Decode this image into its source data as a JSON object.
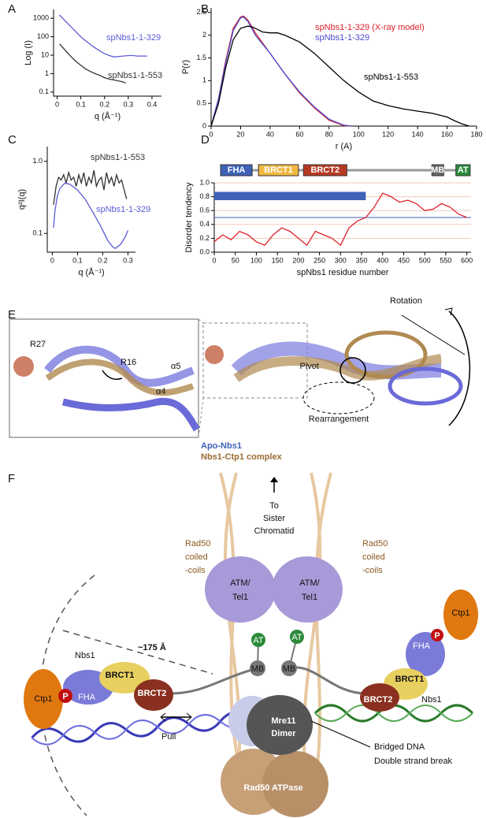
{
  "panel_labels": [
    "A",
    "B",
    "C",
    "D",
    "E",
    "F"
  ],
  "chart_data": [
    {
      "type": "line",
      "xlabel": "q (Å⁻¹)",
      "ylabel": "Log (I)",
      "log_y": true,
      "xlim": [
        -0.015,
        0.44
      ],
      "ylim": [
        0.06,
        3000
      ],
      "xticks": [
        0,
        0.1,
        0.2,
        0.3,
        0.4
      ],
      "yticks": [
        0.1,
        1,
        10,
        100,
        1000
      ],
      "series": [
        {
          "name": "spNbs1-1-329",
          "color": "#5b5bd6",
          "x": [
            0.01,
            0.02,
            0.04,
            0.06,
            0.08,
            0.1,
            0.12,
            0.14,
            0.16,
            0.18,
            0.2,
            0.22,
            0.24,
            0.26,
            0.28,
            0.3,
            0.32,
            0.34,
            0.36,
            0.38
          ],
          "values": [
            1500,
            1100,
            600,
            330,
            180,
            100,
            60,
            38,
            25,
            17,
            12,
            9.5,
            8,
            8.5,
            9,
            9.5,
            9.5,
            9,
            9,
            9
          ]
        },
        {
          "name": "spNbs1-1-553",
          "color": "#333333",
          "x": [
            0.01,
            0.02,
            0.04,
            0.06,
            0.08,
            0.1,
            0.12,
            0.14,
            0.16,
            0.18,
            0.2,
            0.22,
            0.24,
            0.26,
            0.28,
            0.29
          ],
          "values": [
            40,
            30,
            15,
            8,
            4.5,
            2.8,
            1.8,
            1.3,
            1,
            0.8,
            0.6,
            0.5,
            0.45,
            0.4,
            0.35,
            0.3
          ]
        }
      ]
    },
    {
      "type": "line",
      "xlabel": "r (A)",
      "ylabel": "P(r)",
      "log_y": false,
      "xlim": [
        0,
        180
      ],
      "ylim": [
        0,
        2.6
      ],
      "xticks": [
        0,
        20,
        40,
        60,
        80,
        100,
        120,
        140,
        160,
        180
      ],
      "yticks": [
        0,
        0.5,
        1,
        1.5,
        2,
        2.5
      ],
      "series": [
        {
          "name": "spNbs1-1-329 (X-ray model)",
          "color": "#e0202a",
          "x": [
            0,
            5,
            10,
            15,
            20,
            22,
            25,
            30,
            40,
            50,
            60,
            70,
            80,
            90,
            95
          ],
          "values": [
            0,
            0.6,
            1.45,
            2.15,
            2.4,
            2.42,
            2.33,
            2.05,
            1.6,
            1.15,
            0.73,
            0.4,
            0.13,
            0.01,
            0
          ]
        },
        {
          "name": "spNbs1-1-329",
          "color": "#4a4ad0",
          "x": [
            0,
            5,
            10,
            15,
            20,
            22,
            25,
            30,
            40,
            50,
            60,
            70,
            80,
            90,
            95
          ],
          "values": [
            0,
            0.6,
            1.4,
            2.1,
            2.38,
            2.4,
            2.3,
            2.0,
            1.6,
            1.15,
            0.75,
            0.42,
            0.15,
            0.02,
            0
          ]
        },
        {
          "name": "spNbs1-1-553",
          "color": "#000000",
          "x": [
            0,
            5,
            10,
            15,
            20,
            25,
            28,
            35,
            40,
            45,
            50,
            60,
            70,
            80,
            90,
            100,
            110,
            120,
            130,
            140,
            150,
            160,
            165,
            170,
            175
          ],
          "values": [
            0,
            0.5,
            1.3,
            1.9,
            2.15,
            2.2,
            2.18,
            2.07,
            2.05,
            2.05,
            2.0,
            1.85,
            1.6,
            1.3,
            1.0,
            0.75,
            0.55,
            0.45,
            0.38,
            0.33,
            0.28,
            0.2,
            0.12,
            0.05,
            0
          ]
        }
      ]
    },
    {
      "type": "line",
      "xlabel": "q (Å⁻¹)",
      "ylabel": "q²I(q)",
      "log_y": true,
      "xlim": [
        -0.02,
        0.33
      ],
      "ylim": [
        0.055,
        1.6
      ],
      "xticks": [
        0,
        0.1,
        0.2,
        0.3
      ],
      "yticks": [
        0.1,
        {
          "value": 1,
          "label": "1.0"
        }
      ],
      "series": [
        {
          "name": "spNbs1-1-553",
          "color": "#333333",
          "x": [
            0.005,
            0.015,
            0.025,
            0.035,
            0.045,
            0.055,
            0.065,
            0.075,
            0.085,
            0.095,
            0.105,
            0.115,
            0.125,
            0.135,
            0.145,
            0.155,
            0.165,
            0.175,
            0.185,
            0.195,
            0.205,
            0.215,
            0.225,
            0.235,
            0.245,
            0.255,
            0.265,
            0.275,
            0.285,
            0.295
          ],
          "values": [
            0.25,
            0.45,
            0.6,
            0.55,
            0.65,
            0.5,
            0.7,
            0.55,
            0.6,
            0.45,
            0.65,
            0.5,
            0.7,
            0.45,
            0.6,
            0.5,
            0.75,
            0.45,
            0.55,
            0.6,
            0.4,
            0.7,
            0.5,
            0.6,
            0.45,
            0.65,
            0.5,
            0.55,
            0.4,
            0.3
          ]
        },
        {
          "name": "spNbs1-1-329",
          "color": "#5b5bd6",
          "x": [
            0.005,
            0.01,
            0.02,
            0.03,
            0.05,
            0.07,
            0.1,
            0.13,
            0.16,
            0.19,
            0.22,
            0.24,
            0.25,
            0.27,
            0.29,
            0.3
          ],
          "values": [
            0.12,
            0.2,
            0.33,
            0.42,
            0.5,
            0.48,
            0.4,
            0.3,
            0.2,
            0.13,
            0.08,
            0.065,
            0.062,
            0.07,
            0.09,
            0.11
          ]
        }
      ]
    },
    {
      "type": "line",
      "xlabel": "spNbs1 residue number",
      "ylabel": "Disorder tendency",
      "log_y": false,
      "grid": true,
      "xlim": [
        0,
        610
      ],
      "ylim": [
        0,
        1
      ],
      "xticks": [
        0,
        50,
        100,
        150,
        200,
        250,
        300,
        350,
        400,
        450,
        500,
        550,
        600
      ],
      "yticks": [
        {
          "value": 0,
          "label": "0.0"
        },
        0.2,
        0.4,
        0.6,
        0.8,
        {
          "value": 1,
          "label": "1.0"
        }
      ],
      "series": [
        {
          "color": "#e0202a",
          "x": [
            0,
            20,
            40,
            60,
            80,
            100,
            120,
            140,
            160,
            180,
            200,
            220,
            240,
            260,
            280,
            300,
            320,
            340,
            360,
            380,
            400,
            420,
            440,
            460,
            480,
            500,
            520,
            540,
            560,
            580,
            600
          ],
          "values": [
            0.15,
            0.25,
            0.18,
            0.3,
            0.25,
            0.15,
            0.1,
            0.25,
            0.35,
            0.3,
            0.2,
            0.1,
            0.3,
            0.25,
            0.2,
            0.1,
            0.35,
            0.45,
            0.5,
            0.65,
            0.85,
            0.8,
            0.72,
            0.75,
            0.7,
            0.6,
            0.62,
            0.7,
            0.65,
            0.55,
            0.5
          ]
        }
      ],
      "reference_line": 0.5,
      "ordered_bar": {
        "from": 0,
        "to": 360,
        "bottom": 0.75,
        "top": 0.87,
        "color": "#3f62b8"
      },
      "domains": [
        {
          "label": "FHA",
          "start": 15,
          "end": 90,
          "color": "#3f62b8"
        },
        {
          "label": "BRCT1",
          "start": 105,
          "end": 200,
          "color": "#f0b840"
        },
        {
          "label": "BRCT2",
          "start": 212,
          "end": 315,
          "color": "#b53a25"
        },
        {
          "label": "MB",
          "start": 517,
          "end": 545,
          "color": "#666666"
        },
        {
          "label": "AT",
          "start": 574,
          "end": 608,
          "color": "#2a8a3a"
        }
      ]
    }
  ],
  "panel_e": {
    "r27": "R27",
    "r16": "R16",
    "alpha5": "α5",
    "alpha4": "α4",
    "pivot": "Pivot",
    "rotation": "Rotation",
    "rearrangement": "Rearrangement",
    "legend": [
      "Apo-Nbs1",
      "Nbs1-Ctp1 complex"
    ]
  },
  "panel_f": {
    "to_sister": [
      "To",
      "Sister",
      "Chromatid"
    ],
    "rad50_coils_left": [
      "Rad50",
      "coiled",
      "-coils"
    ],
    "rad50_coils_right": [
      "Rad50",
      "coiled",
      "-coils"
    ],
    "atm_left": [
      "ATM/",
      "Tel1"
    ],
    "atm_right": [
      "ATM/",
      "Tel1"
    ],
    "ctp1_left": "Ctp1",
    "ctp1_right": "Ctp1",
    "p_left": "P",
    "p_right": "P",
    "fha_left": "FHA",
    "fha_right": "FHA",
    "brct1_left": "BRCT1",
    "brct1_right": "BRCT1",
    "brct2_left": "BRCT2",
    "brct2_right": "BRCT2",
    "nbs1_left": "Nbs1",
    "nbs1_right": "Nbs1",
    "distance": "~175 Å",
    "at_left": "AT",
    "at_right": "AT",
    "mb_left": "MB",
    "mb_right": "MB",
    "pull": "Pull",
    "mre11": [
      "Mre11",
      "Dimer"
    ],
    "rad50_atpase": "Rad50 ATPase",
    "dsb": [
      "Bridged DNA",
      "Double strand break"
    ]
  }
}
